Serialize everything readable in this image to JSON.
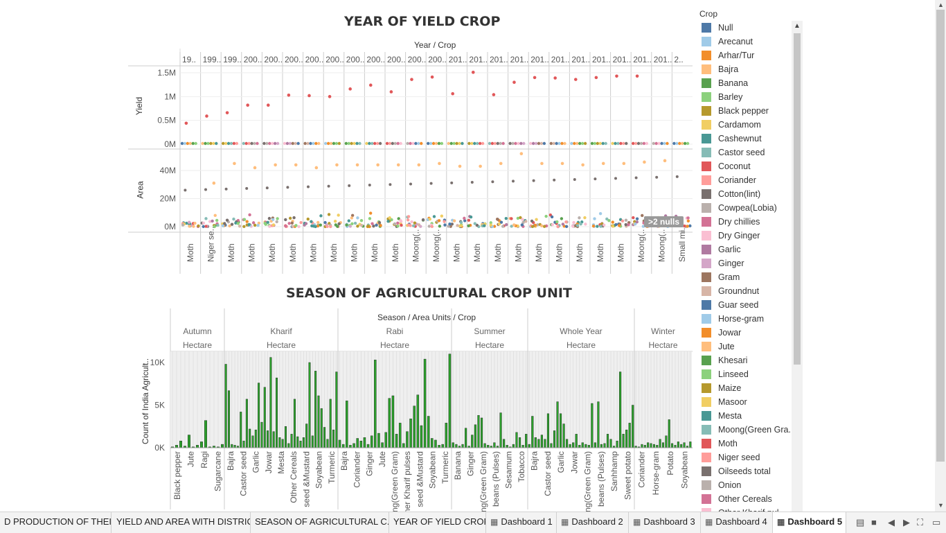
{
  "yield_chart": {
    "title": "YEAR OF YIELD CROP",
    "header": "Year / Crop",
    "year_labels": [
      "19..",
      "199..",
      "199..",
      "200..",
      "200..",
      "200..",
      "200..",
      "200..",
      "200..",
      "200..",
      "200..",
      "200..",
      "200..",
      "201..",
      "201..",
      "201..",
      "201..",
      "201..",
      "201..",
      "201..",
      "201..",
      "201..",
      "201..",
      "201..",
      "2.."
    ],
    "crop_labels": [
      "Moth",
      "Niger se..",
      "Moth",
      "Moth",
      "Moth",
      "Moth",
      "Moth",
      "Moth",
      "Moth",
      "Moth",
      "Moth",
      "Moong(..",
      "Moong(..",
      "Moth",
      "Moth",
      "Moth",
      "Moth",
      "Moth",
      "Moth",
      "Moth",
      "Moth",
      "Moth",
      "Moong(..",
      "Moong(..",
      "Small mi.."
    ],
    "yield_axis": {
      "label": "Yield",
      "ticks": [
        "1.5M",
        "1M",
        "0.5M",
        "0M"
      ]
    },
    "area_axis": {
      "label": "Area",
      "ticks": [
        "40M",
        "20M",
        "0M"
      ]
    },
    "null_badge": ">2 nulls",
    "yield_points_M": [
      0.44,
      0.59,
      0.66,
      0.82,
      0.82,
      1.03,
      1.02,
      1.0,
      1.16,
      1.24,
      1.1,
      1.36,
      1.41,
      1.06,
      1.51,
      1.04,
      1.3,
      1.4,
      1.39,
      1.36,
      1.4,
      1.43,
      1.43,
      null,
      null
    ],
    "area_highlight_M": [
      null,
      31,
      45,
      42,
      44,
      44,
      42,
      44,
      44,
      44,
      44,
      44,
      45,
      43,
      43,
      45,
      52,
      45,
      45,
      44,
      45,
      45,
      46,
      47,
      null
    ]
  },
  "season_chart": {
    "title": "SEASON OF AGRICULTURAL CROP UNIT",
    "header": "Season / Area Units / Crop",
    "y_axis": {
      "label": "Count of India Agricult..",
      "ticks": [
        "10K",
        "5K",
        "0K"
      ]
    },
    "seasons": [
      {
        "name": "Autumn",
        "unit": "Hectare",
        "crops": [
          "Black pepper",
          "Jute",
          "Ragi",
          "Sugarcane"
        ],
        "bars": [
          0.1,
          0.3,
          0.8,
          0.2,
          1.5,
          0.1,
          0.3,
          0.7,
          3.2,
          0.1,
          0.2,
          0.1,
          0.4
        ]
      },
      {
        "name": "Kharif",
        "unit": "Hectare",
        "crops": [
          "Bajra",
          "Castor seed",
          "Garlic",
          "Jowar",
          "Mesta",
          "Other Cereals",
          "seed &Mustard",
          "Soyabean",
          "Turmeric"
        ],
        "bars": [
          9.8,
          6.7,
          0.4,
          0.3,
          0.2,
          4.2,
          0.8,
          5.7,
          2.2,
          1.4,
          2.1,
          7.6,
          3.0,
          7.1,
          2.0,
          10.6,
          1.9,
          8.2,
          1.2,
          1.0,
          2.5,
          0.5,
          1.6,
          5.7,
          1.3,
          0.8,
          1.2,
          2.8,
          10.0,
          1.4,
          9.0,
          6.1,
          4.6,
          2.4,
          1.0,
          5.7,
          2.1,
          8.9
        ]
      },
      {
        "name": "Rabi",
        "unit": "Hectare",
        "crops": [
          "Bajra",
          "Coriander",
          "Ginger",
          "Jute",
          "ng(Green Gram)",
          "ner Kharif pulses",
          "seed &Mustard",
          "Soyabean",
          "Turmeric"
        ],
        "bars": [
          0.9,
          0.4,
          5.5,
          0.3,
          0.5,
          1.1,
          0.8,
          1.2,
          0.4,
          1.4,
          10.3,
          1.7,
          0.6,
          1.8,
          5.8,
          6.1,
          1.6,
          2.9,
          0.5,
          1.9,
          3.4,
          4.9,
          6.2,
          2.6,
          10.4,
          3.7,
          1.1,
          0.9,
          0.3,
          0.4,
          2.9,
          11.0
        ]
      },
      {
        "name": "Summer",
        "unit": "Hectare",
        "crops": [
          "Banana",
          "Ginger",
          "ng(Green Gram)",
          "beans (Pulses)",
          "Sesamum",
          "Tobacco"
        ],
        "bars": [
          0.6,
          0.4,
          0.2,
          0.4,
          2.3,
          0.2,
          1.5,
          2.7,
          3.8,
          3.5,
          0.5,
          0.3,
          0.2,
          0.6,
          0.2,
          4.1,
          1.0,
          0.3,
          0.1,
          0.4,
          1.8,
          1.2,
          0.3,
          1.6
        ]
      },
      {
        "name": "Whole Year",
        "unit": "Hectare",
        "crops": [
          "Bajra",
          "Castor seed",
          "Garlic",
          "Jowar",
          "ng(Green Gram)",
          "beans (Pulses)",
          "Sanhhamp",
          "Sweet potato"
        ],
        "bars": [
          0.4,
          3.7,
          1.2,
          1.0,
          1.5,
          1.0,
          4.0,
          0.5,
          2.0,
          5.4,
          4.0,
          2.8,
          1.0,
          0.4,
          0.6,
          1.6,
          0.3,
          0.6,
          0.4,
          0.3,
          5.2,
          0.6,
          5.4,
          0.4,
          0.5,
          1.6,
          1.0,
          0.2,
          0.8,
          8.9,
          1.6,
          2.1,
          2.9,
          5.0
        ]
      },
      {
        "name": "Winter",
        "unit": "Hectare",
        "crops": [
          "Coriander",
          "Horse-gram",
          "Potato",
          "Soyabean"
        ],
        "bars": [
          0.2,
          0.1,
          0.4,
          0.3,
          0.6,
          0.5,
          0.4,
          0.3,
          1.0,
          0.6,
          1.4,
          3.3,
          0.5,
          0.3,
          0.7,
          0.4,
          0.6,
          0.2,
          0.7
        ]
      }
    ]
  },
  "legend": {
    "title": "Crop",
    "items": [
      {
        "label": "Null",
        "color": "#4e79a7"
      },
      {
        "label": "Arecanut",
        "color": "#a0cbe8"
      },
      {
        "label": "Arhar/Tur",
        "color": "#f28e2b"
      },
      {
        "label": "Bajra",
        "color": "#ffbe7d"
      },
      {
        "label": "Banana",
        "color": "#59a14f"
      },
      {
        "label": "Barley",
        "color": "#8cd17d"
      },
      {
        "label": "Black pepper",
        "color": "#b6992d"
      },
      {
        "label": "Cardamom",
        "color": "#f1ce63"
      },
      {
        "label": "Cashewnut",
        "color": "#499894"
      },
      {
        "label": "Castor seed",
        "color": "#86bcb6"
      },
      {
        "label": "Coconut",
        "color": "#e15759"
      },
      {
        "label": "Coriander",
        "color": "#ff9d9a"
      },
      {
        "label": "Cotton(lint)",
        "color": "#79706e"
      },
      {
        "label": "Cowpea(Lobia)",
        "color": "#bab0ac"
      },
      {
        "label": "Dry chillies",
        "color": "#d37295"
      },
      {
        "label": "Dry Ginger",
        "color": "#fabfd2"
      },
      {
        "label": "Garlic",
        "color": "#b07aa1"
      },
      {
        "label": "Ginger",
        "color": "#d4a6c8"
      },
      {
        "label": "Gram",
        "color": "#9d7660"
      },
      {
        "label": "Groundnut",
        "color": "#d7b5a6"
      },
      {
        "label": "Guar seed",
        "color": "#4e79a7"
      },
      {
        "label": "Horse-gram",
        "color": "#a0cbe8"
      },
      {
        "label": "Jowar",
        "color": "#f28e2b"
      },
      {
        "label": "Jute",
        "color": "#ffbe7d"
      },
      {
        "label": "Khesari",
        "color": "#59a14f"
      },
      {
        "label": "Linseed",
        "color": "#8cd17d"
      },
      {
        "label": "Maize",
        "color": "#b6992d"
      },
      {
        "label": "Masoor",
        "color": "#f1ce63"
      },
      {
        "label": "Mesta",
        "color": "#499894"
      },
      {
        "label": "Moong(Green Gra..",
        "color": "#86bcb6"
      },
      {
        "label": "Moth",
        "color": "#e15759"
      },
      {
        "label": "Niger seed",
        "color": "#ff9d9a"
      },
      {
        "label": "Oilseeds total",
        "color": "#79706e"
      },
      {
        "label": "Onion",
        "color": "#bab0ac"
      },
      {
        "label": "Other Cereals",
        "color": "#d37295"
      },
      {
        "label": "Other Kharif pul..",
        "color": "#fabfd2"
      }
    ]
  },
  "tabs": [
    {
      "label": "D PRODUCTION OF THEIR ...",
      "icon": ""
    },
    {
      "label": "YIELD AND AREA WITH DISTRICT",
      "icon": ""
    },
    {
      "label": "SEASON OF AGRICULTURAL C...",
      "icon": ""
    },
    {
      "label": "YEAR OF YIELD CROP",
      "icon": ""
    },
    {
      "label": "Dashboard 1",
      "icon": "▦"
    },
    {
      "label": "Dashboard 2",
      "icon": "▦"
    },
    {
      "label": "Dashboard 3",
      "icon": "▦"
    },
    {
      "label": "Dashboard 4",
      "icon": "▦"
    },
    {
      "label": "Dashboard 5",
      "icon": "▦"
    }
  ],
  "colors": {
    "bar_fill": "#2ca02c",
    "yield_point": "#e15759",
    "area_highlight": "#ffbe7d",
    "grid": "#e6e6e6"
  }
}
